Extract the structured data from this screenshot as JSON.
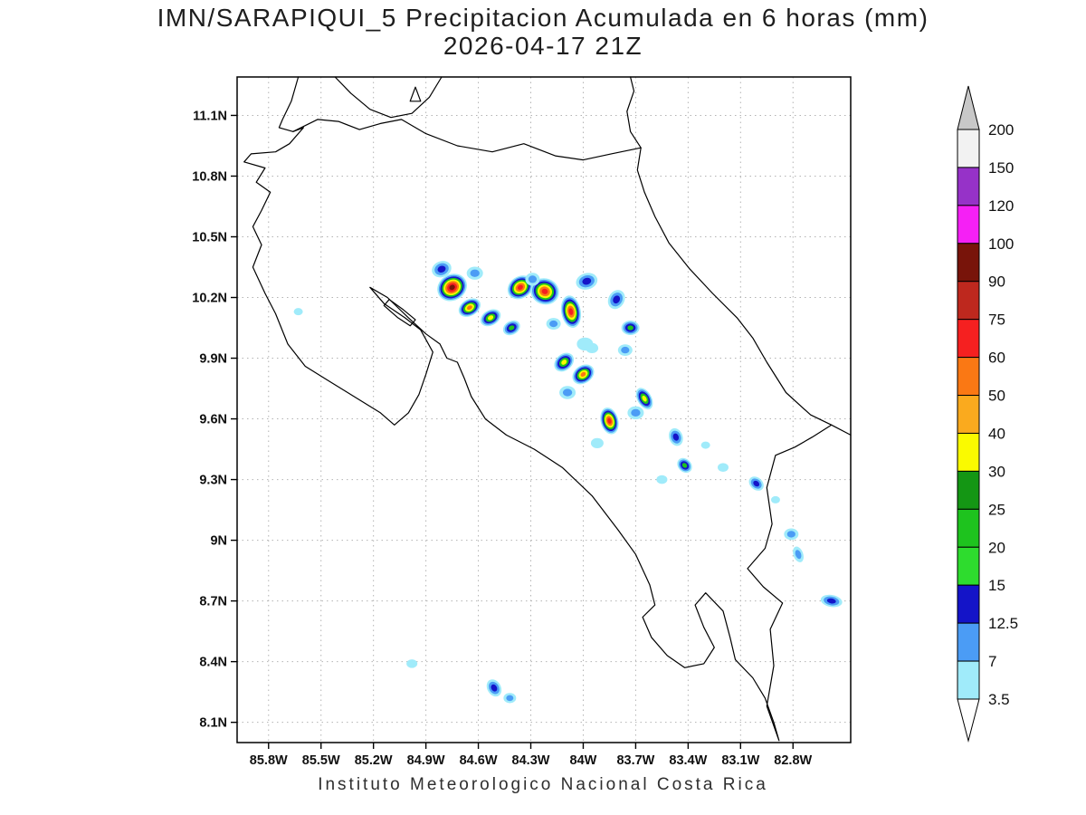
{
  "header": {
    "title_line1": "IMN/SARAPIQUI_5 Precipitacion Acumulada en 6 horas (mm)",
    "title_line2": "2026-04-17 21Z"
  },
  "footer": {
    "credit": "Instituto Meteorologico Nacional Costa Rica"
  },
  "chart_data": {
    "type": "heatmap",
    "title": "IMN/SARAPIQUI_5 Precipitacion Acumulada en 6 horas (mm)",
    "valid_time": "2026-04-17 21Z",
    "units": "mm",
    "region": "Costa Rica",
    "x_axis": {
      "direction": "longitude West",
      "labels": [
        "85.8W",
        "85.5W",
        "85.2W",
        "84.9W",
        "84.6W",
        "84.3W",
        "84W",
        "83.7W",
        "83.4W",
        "83.1W",
        "82.8W"
      ],
      "values": [
        85.8,
        85.5,
        85.2,
        84.9,
        84.6,
        84.3,
        84.0,
        83.7,
        83.4,
        83.1,
        82.8
      ]
    },
    "y_axis": {
      "direction": "latitude North",
      "labels": [
        "11.1N",
        "10.8N",
        "10.5N",
        "10.2N",
        "9.9N",
        "9.6N",
        "9.3N",
        "9N",
        "8.7N",
        "8.4N",
        "8.1N"
      ],
      "values": [
        11.1,
        10.8,
        10.5,
        10.2,
        9.9,
        9.6,
        9.3,
        9.0,
        8.7,
        8.4,
        8.1
      ]
    },
    "colorbar": {
      "tick_labels": [
        "200",
        "150",
        "120",
        "100",
        "90",
        "75",
        "60",
        "50",
        "40",
        "30",
        "25",
        "20",
        "15",
        "12.5",
        "7",
        "3.5"
      ],
      "segment_colors_top_to_bottom": [
        "#F2F2F2",
        "#9632C8",
        "#F520F5",
        "#78140A",
        "#BE281E",
        "#F52020",
        "#FA7814",
        "#FAAA1E",
        "#FAFA00",
        "#149614",
        "#1EC31E",
        "#2EDC2E",
        "#1414C8",
        "#4B9CF5",
        "#A0EBFA"
      ],
      "above_max_color": "#C8C8C8",
      "below_min_color": "#FFFFFF"
    },
    "cells": [
      {
        "lon_w": 84.81,
        "lat_n": 10.34,
        "peak_mm": 16,
        "size": 11,
        "aspect": 0.8,
        "rot": -20
      },
      {
        "lon_w": 84.75,
        "lat_n": 10.25,
        "peak_mm": 95,
        "size": 17,
        "aspect": 0.85,
        "rot": -30
      },
      {
        "lon_w": 84.62,
        "lat_n": 10.32,
        "peak_mm": 10,
        "size": 9,
        "aspect": 0.8,
        "rot": 0
      },
      {
        "lon_w": 84.36,
        "lat_n": 10.25,
        "peak_mm": 70,
        "size": 15,
        "aspect": 0.8,
        "rot": -35
      },
      {
        "lon_w": 84.22,
        "lat_n": 10.23,
        "peak_mm": 70,
        "size": 16,
        "aspect": 0.9,
        "rot": 20
      },
      {
        "lon_w": 84.29,
        "lat_n": 10.29,
        "peak_mm": 10,
        "size": 8,
        "aspect": 0.9,
        "rot": 0
      },
      {
        "lon_w": 83.98,
        "lat_n": 10.28,
        "peak_mm": 16,
        "size": 12,
        "aspect": 0.75,
        "rot": -15
      },
      {
        "lon_w": 84.07,
        "lat_n": 10.13,
        "peak_mm": 70,
        "size": 18,
        "aspect": 0.6,
        "rot": 80
      },
      {
        "lon_w": 84.65,
        "lat_n": 10.15,
        "peak_mm": 50,
        "size": 13,
        "aspect": 0.7,
        "rot": -30
      },
      {
        "lon_w": 84.53,
        "lat_n": 10.1,
        "peak_mm": 33,
        "size": 12,
        "aspect": 0.7,
        "rot": -30
      },
      {
        "lon_w": 84.41,
        "lat_n": 10.05,
        "peak_mm": 25,
        "size": 10,
        "aspect": 0.75,
        "rot": -30
      },
      {
        "lon_w": 83.81,
        "lat_n": 10.19,
        "peak_mm": 16,
        "size": 11,
        "aspect": 0.8,
        "rot": -60
      },
      {
        "lon_w": 83.73,
        "lat_n": 10.05,
        "peak_mm": 25,
        "size": 10,
        "aspect": 0.8,
        "rot": 0
      },
      {
        "lon_w": 83.76,
        "lat_n": 9.94,
        "peak_mm": 10,
        "size": 8,
        "aspect": 0.8,
        "rot": 0
      },
      {
        "lon_w": 84.11,
        "lat_n": 9.88,
        "peak_mm": 33,
        "size": 12,
        "aspect": 0.75,
        "rot": -40
      },
      {
        "lon_w": 84.0,
        "lat_n": 9.82,
        "peak_mm": 50,
        "size": 13,
        "aspect": 0.75,
        "rot": -35
      },
      {
        "lon_w": 83.99,
        "lat_n": 9.97,
        "peak_mm": 5,
        "size": 9,
        "aspect": 0.8,
        "rot": 0
      },
      {
        "lon_w": 84.09,
        "lat_n": 9.73,
        "peak_mm": 10,
        "size": 9,
        "aspect": 0.8,
        "rot": 0
      },
      {
        "lon_w": 83.65,
        "lat_n": 9.7,
        "peak_mm": 33,
        "size": 13,
        "aspect": 0.6,
        "rot": 60
      },
      {
        "lon_w": 83.85,
        "lat_n": 9.59,
        "peak_mm": 70,
        "size": 15,
        "aspect": 0.65,
        "rot": 75
      },
      {
        "lon_w": 83.7,
        "lat_n": 9.63,
        "peak_mm": 10,
        "size": 9,
        "aspect": 0.8,
        "rot": 0
      },
      {
        "lon_w": 83.47,
        "lat_n": 9.51,
        "peak_mm": 16,
        "size": 10,
        "aspect": 0.75,
        "rot": 70
      },
      {
        "lon_w": 83.42,
        "lat_n": 9.37,
        "peak_mm": 25,
        "size": 9,
        "aspect": 0.8,
        "rot": 45
      },
      {
        "lon_w": 83.3,
        "lat_n": 9.47,
        "peak_mm": 5,
        "size": 5,
        "aspect": 0.8,
        "rot": 0
      },
      {
        "lon_w": 83.2,
        "lat_n": 9.36,
        "peak_mm": 5,
        "size": 6,
        "aspect": 0.8,
        "rot": 0
      },
      {
        "lon_w": 83.01,
        "lat_n": 9.28,
        "peak_mm": 16,
        "size": 9,
        "aspect": 0.75,
        "rot": 40
      },
      {
        "lon_w": 82.9,
        "lat_n": 9.2,
        "peak_mm": 5,
        "size": 5,
        "aspect": 0.8,
        "rot": 0
      },
      {
        "lon_w": 82.81,
        "lat_n": 9.03,
        "peak_mm": 10,
        "size": 8,
        "aspect": 0.8,
        "rot": 0
      },
      {
        "lon_w": 82.77,
        "lat_n": 8.93,
        "peak_mm": 10,
        "size": 9,
        "aspect": 0.6,
        "rot": 70
      },
      {
        "lon_w": 82.58,
        "lat_n": 8.7,
        "peak_mm": 16,
        "size": 12,
        "aspect": 0.55,
        "rot": 10
      },
      {
        "lon_w": 84.51,
        "lat_n": 8.27,
        "peak_mm": 16,
        "size": 10,
        "aspect": 0.75,
        "rot": 60
      },
      {
        "lon_w": 84.42,
        "lat_n": 8.22,
        "peak_mm": 10,
        "size": 7,
        "aspect": 0.8,
        "rot": 0
      },
      {
        "lon_w": 84.98,
        "lat_n": 8.39,
        "peak_mm": 5,
        "size": 6,
        "aspect": 0.8,
        "rot": 0
      },
      {
        "lon_w": 85.63,
        "lat_n": 10.13,
        "peak_mm": 5,
        "size": 5,
        "aspect": 0.8,
        "rot": 0
      },
      {
        "lon_w": 83.92,
        "lat_n": 9.48,
        "peak_mm": 5,
        "size": 7,
        "aspect": 0.8,
        "rot": 0
      },
      {
        "lon_w": 83.95,
        "lat_n": 9.95,
        "peak_mm": 5,
        "size": 7,
        "aspect": 0.8,
        "rot": 0
      },
      {
        "lon_w": 84.17,
        "lat_n": 10.07,
        "peak_mm": 10,
        "size": 8,
        "aspect": 0.8,
        "rot": 0
      },
      {
        "lon_w": 83.55,
        "lat_n": 9.3,
        "peak_mm": 5,
        "size": 6,
        "aspect": 0.8,
        "rot": 0
      }
    ]
  }
}
